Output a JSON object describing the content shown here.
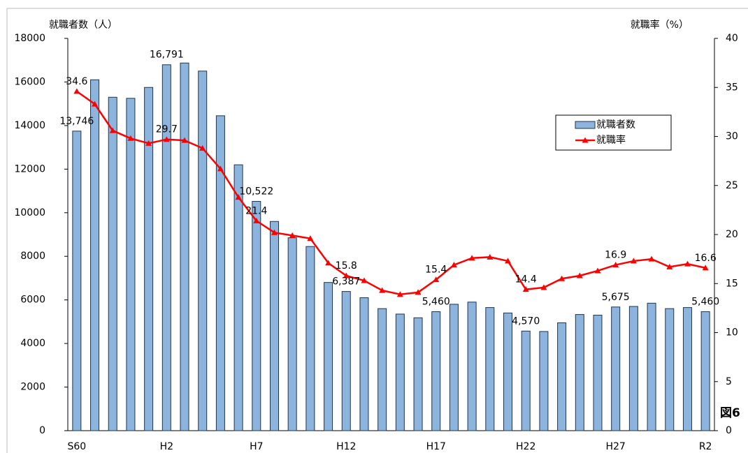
{
  "chart_data": {
    "type": "bar-line",
    "y_label": "就職者数（人）",
    "y2_label": "就職率（%）",
    "annotation": "図6",
    "categories": [
      "S60",
      null,
      null,
      null,
      null,
      "H2",
      null,
      null,
      null,
      null,
      "H7",
      null,
      null,
      null,
      null,
      "H12",
      null,
      null,
      null,
      null,
      "H17",
      null,
      null,
      null,
      null,
      "H22",
      null,
      null,
      null,
      null,
      "H27",
      null,
      null,
      null,
      null,
      "R2"
    ],
    "series": [
      {
        "name": "就職者数",
        "type": "bar",
        "color": "#8db4dc",
        "values": [
          13746,
          16100,
          15300,
          15250,
          15750,
          16791,
          16870,
          16500,
          14450,
          12200,
          10522,
          9600,
          8850,
          8450,
          6800,
          6387,
          6100,
          5600,
          5350,
          5180,
          5460,
          5800,
          5900,
          5650,
          5400,
          4570,
          4550,
          4950,
          5330,
          5300,
          5675,
          5700,
          5850,
          5600,
          5650,
          5460
        ],
        "value_labels": [
          "13,746",
          null,
          null,
          null,
          null,
          "16,791",
          null,
          null,
          null,
          null,
          "10,522",
          null,
          null,
          null,
          null,
          "6,387",
          null,
          null,
          null,
          null,
          "5,460",
          null,
          null,
          null,
          null,
          "4,570",
          null,
          null,
          null,
          null,
          "5,675",
          null,
          null,
          null,
          null,
          "5,460"
        ]
      },
      {
        "name": "就職率",
        "type": "line",
        "axis": "y2",
        "color": "#ff0000",
        "values": [
          34.6,
          33.3,
          30.6,
          29.8,
          29.3,
          29.7,
          29.6,
          28.8,
          26.7,
          23.8,
          21.4,
          20.2,
          19.9,
          19.6,
          17.1,
          15.8,
          15.3,
          14.3,
          13.9,
          14.1,
          15.4,
          16.9,
          17.6,
          17.7,
          17.3,
          14.4,
          14.6,
          15.5,
          15.8,
          16.3,
          16.9,
          17.3,
          17.5,
          16.7,
          17.0,
          16.6
        ],
        "value_labels": [
          "34.6",
          null,
          null,
          null,
          null,
          "29.7",
          null,
          null,
          null,
          null,
          "21.4",
          null,
          null,
          null,
          null,
          "15.8",
          null,
          null,
          null,
          null,
          "15.4",
          null,
          null,
          null,
          null,
          "14.4",
          null,
          null,
          null,
          null,
          "16.9",
          null,
          null,
          null,
          null,
          "16.6"
        ]
      }
    ],
    "ylim": [
      0,
      18000
    ],
    "yticks": [
      0,
      2000,
      4000,
      6000,
      8000,
      10000,
      12000,
      14000,
      16000,
      18000
    ],
    "y2lim": [
      0,
      40
    ],
    "y2ticks": [
      0,
      5,
      10,
      15,
      20,
      25,
      30,
      35,
      40
    ],
    "legend": "upper right",
    "grid": false
  }
}
